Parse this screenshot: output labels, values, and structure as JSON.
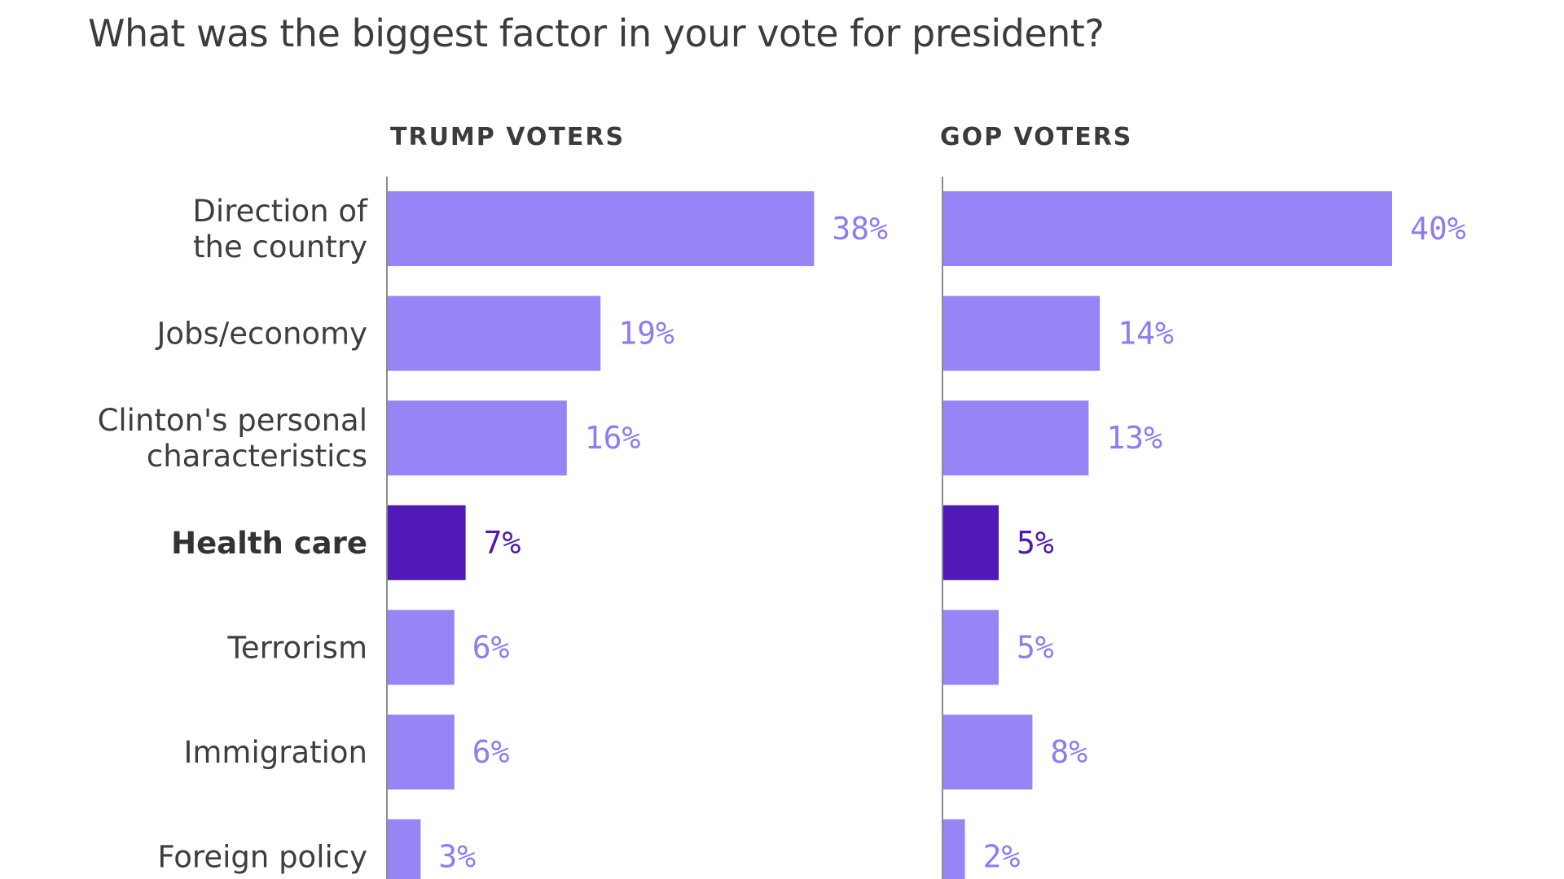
{
  "chart_data": {
    "type": "bar",
    "orientation": "horizontal",
    "title": "What was the biggest factor in your vote for president?",
    "categories": [
      "Direction of the country",
      "Jobs/economy",
      "Clinton's personal characteristics",
      "Health care",
      "Terrorism",
      "Immigration",
      "Foreign policy"
    ],
    "category_lines": [
      [
        "Direction of",
        "the country"
      ],
      [
        "Jobs/economy"
      ],
      [
        "Clinton's personal",
        "characteristics"
      ],
      [
        "Health care"
      ],
      [
        "Terrorism"
      ],
      [
        "Immigration"
      ],
      [
        "Foreign policy"
      ]
    ],
    "highlight_category": "Health care",
    "series": [
      {
        "name": "TRUMP VOTERS",
        "values": [
          38,
          19,
          16,
          7,
          6,
          6,
          3
        ],
        "value_labels": [
          "38%",
          "19%",
          "16%",
          "7%",
          "6%",
          "6%",
          "3%"
        ]
      },
      {
        "name": "GOP VOTERS",
        "values": [
          40,
          14,
          13,
          5,
          5,
          8,
          2
        ],
        "value_labels": [
          "40%",
          "14%",
          "13%",
          "5%",
          "5%",
          "8%",
          "2%"
        ]
      }
    ],
    "unit": "%",
    "xlim": [
      0,
      40
    ],
    "grid": false,
    "legend": "none",
    "xlabel": "",
    "ylabel": ""
  },
  "colors": {
    "bar": "#9585f7",
    "bar_highlight": "#5119b7",
    "value_label": "#8d7cf2",
    "value_label_highlight": "#4f17b5",
    "title_text": "#3c3c3c",
    "axis": "#8c8c8c"
  }
}
